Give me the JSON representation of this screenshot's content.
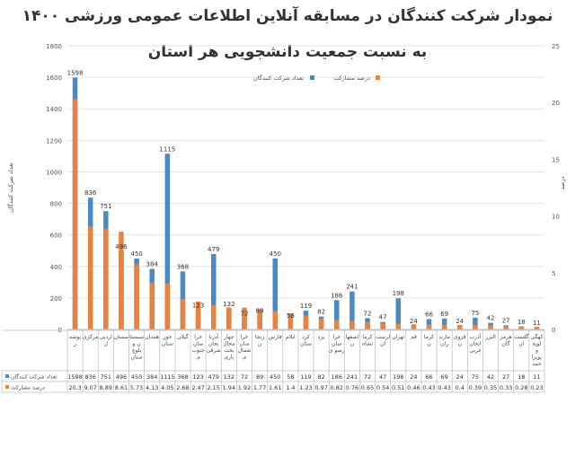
{
  "chart_data": {
    "type": "bar",
    "title": "نمودار شرکت کنندگان در مسابقه آنلاین اطلاعات عمومی ورزشی ۱۴۰۰",
    "subtitle": "به نسبت جمعیت دانشجویی هر استان",
    "ylabel": "تعداد شرکت کنندگان",
    "y2label": "درصد",
    "ylim": [
      0,
      1800
    ],
    "yticks": [
      0,
      200,
      400,
      600,
      800,
      1000,
      1200,
      1400,
      1600,
      1800
    ],
    "y2lim": [
      0,
      25
    ],
    "y2ticks": [
      0,
      5,
      10,
      15,
      20,
      25
    ],
    "grid": true,
    "legend_placement": "top-center",
    "categories": [
      "بوشه ر",
      "مرکزی",
      "اردبی ل",
      "سمنان",
      "سیستا ن و بلوچ ستان",
      "همدان",
      "خوز ستان",
      "گیلان",
      "خرا سان جنوب ی",
      "آذربا یجان شرقی",
      "چهار محال بخت یاری",
      "خرا سان شمال ی",
      "زنجا ن",
      "فارس",
      "ایلام",
      "کرد ستان",
      "یزد",
      "خرا سان رضو ی",
      "اصفها ن",
      "کرما نشاه",
      "لرست ان",
      "تهران",
      "قم",
      "کرما ن",
      "مازند ران",
      "قزوی ن",
      "آذرب ایجان غربی",
      "البرز",
      "هرمز گان",
      "گلست ان",
      "کهگی لویه و بویرا حمد"
    ],
    "series": [
      {
        "name": "تعداد شرکت کنندگان",
        "color": "#4a89c8",
        "axis": "left",
        "values": [
          1598,
          836,
          751,
          496,
          450,
          384,
          1115,
          368,
          123,
          479,
          132,
          72,
          89,
          450,
          58,
          119,
          82,
          186,
          241,
          72,
          47,
          198,
          24,
          66,
          69,
          24,
          75,
          42,
          27,
          18,
          11
        ]
      },
      {
        "name": "درصد مشارکت",
        "color": "#e8823c",
        "axis": "right",
        "values": [
          20.3,
          9.07,
          8.89,
          8.61,
          5.73,
          4.13,
          4.05,
          2.68,
          2.47,
          2.15,
          1.94,
          1.92,
          1.77,
          1.61,
          1.4,
          1.23,
          0.97,
          0.82,
          0.76,
          0.65,
          0.54,
          0.51,
          0.46,
          0.43,
          0.43,
          0.4,
          0.39,
          0.35,
          0.33,
          0.28,
          0.23
        ]
      }
    ],
    "table_row_labels": [
      "تعداد شرکت کنندگان",
      "درصد مشارکت"
    ]
  }
}
